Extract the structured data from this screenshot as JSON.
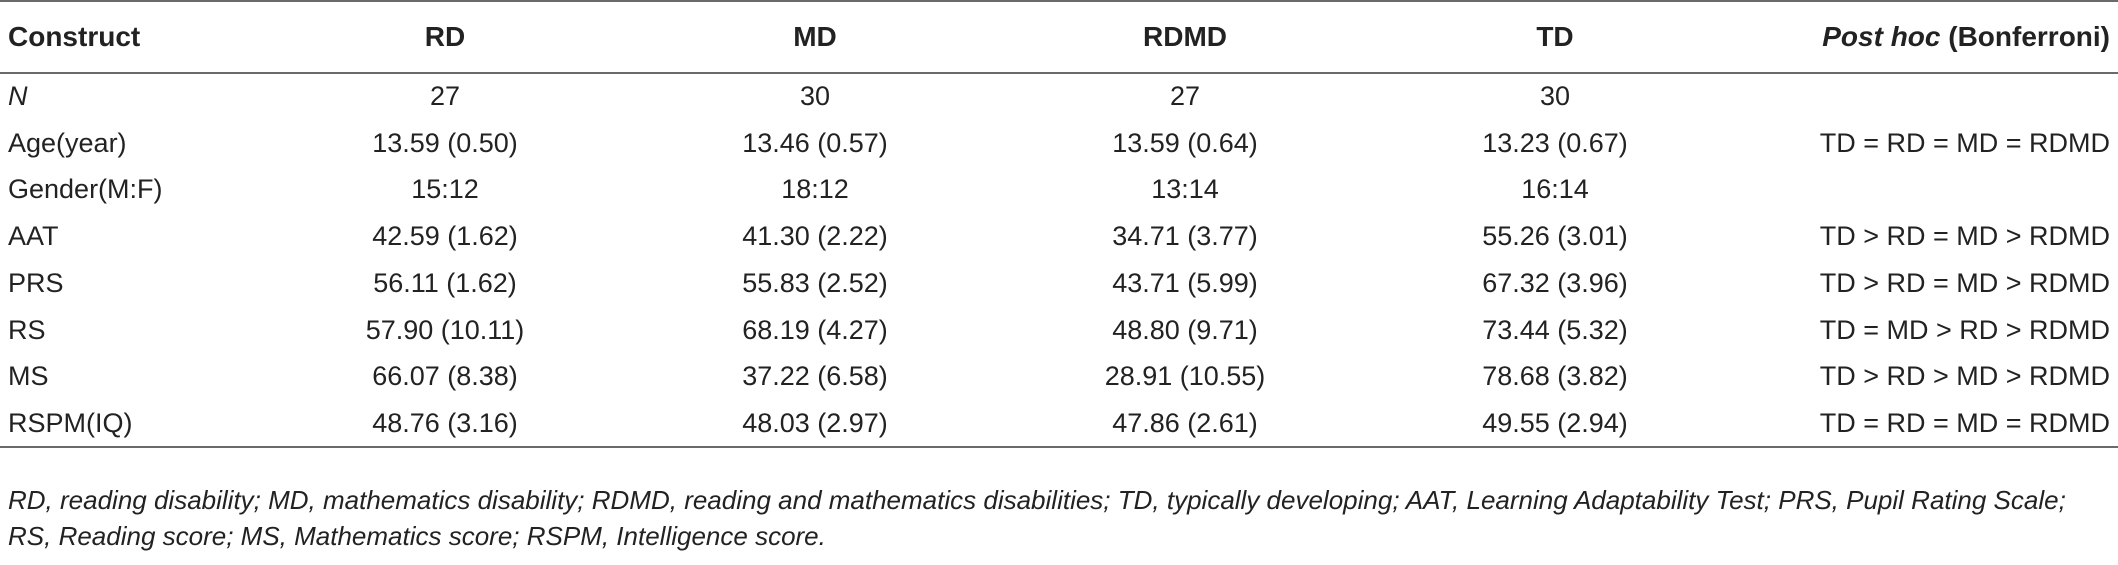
{
  "table": {
    "headers": [
      "Construct",
      "RD",
      "MD",
      "RDMD",
      "TD"
    ],
    "posthoc_header": {
      "italic": "Post hoc",
      "rest": " (Bonferroni)"
    },
    "rows": [
      [
        "N",
        "27",
        "30",
        "27",
        "30",
        ""
      ],
      [
        "Age(year)",
        "13.59 (0.50)",
        "13.46 (0.57)",
        "13.59 (0.64)",
        "13.23 (0.67)",
        "TD = RD = MD = RDMD"
      ],
      [
        "Gender(M:F)",
        "15:12",
        "18:12",
        "13:14",
        "16:14",
        ""
      ],
      [
        "AAT",
        "42.59 (1.62)",
        "41.30 (2.22)",
        "34.71 (3.77)",
        "55.26 (3.01)",
        "TD > RD = MD > RDMD"
      ],
      [
        "PRS",
        "56.11 (1.62)",
        "55.83 (2.52)",
        "43.71 (5.99)",
        "67.32 (3.96)",
        "TD > RD = MD > RDMD"
      ],
      [
        "RS",
        "57.90 (10.11)",
        "68.19 (4.27)",
        "48.80 (9.71)",
        "73.44 (5.32)",
        "TD = MD > RD > RDMD"
      ],
      [
        "MS",
        "66.07 (8.38)",
        "37.22 (6.58)",
        "28.91 (10.55)",
        "78.68 (3.82)",
        "TD > RD > MD > RDMD"
      ],
      [
        "RSPM(IQ)",
        "48.76 (3.16)",
        "48.03 (2.97)",
        "47.86 (2.61)",
        "49.55 (2.94)",
        "TD = RD = MD = RDMD"
      ]
    ]
  },
  "footnote": "RD, reading disability; MD, mathematics disability; RDMD, reading and mathematics disabilities; TD, typically developing; AAT, Learning Adaptability Test; PRS, Pupil Rating Scale; RS, Reading score; MS, Mathematics score; RSPM, Intelligence score."
}
